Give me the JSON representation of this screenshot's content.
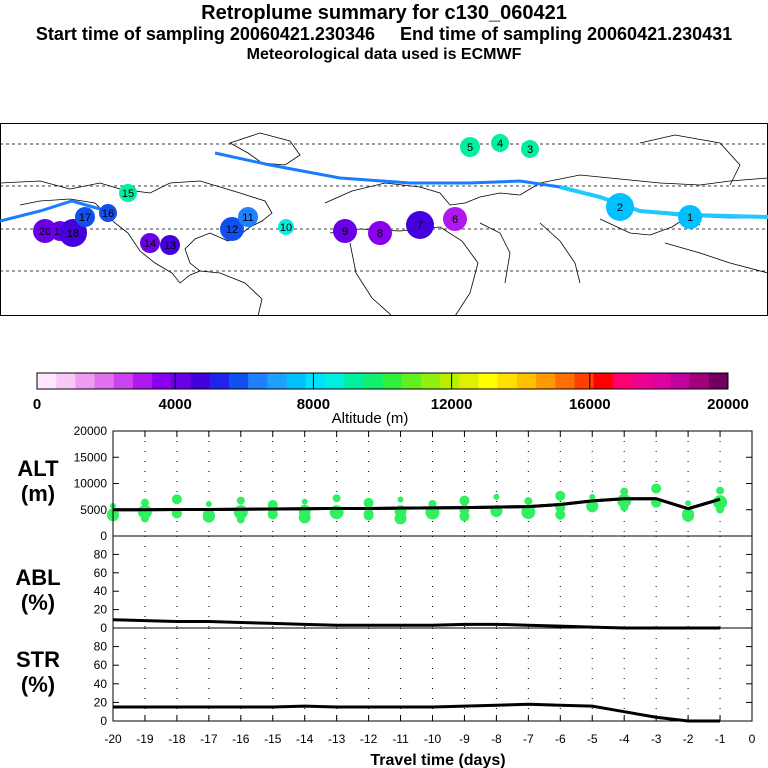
{
  "header": {
    "title": "Retroplume summary for c130_060421",
    "subtitle": "Start time of sampling 20060421.230346     End time of sampling 20060421.230431",
    "met_line": "Meteorological data used is ECMWF"
  },
  "colorbar": {
    "ticks": [
      "0",
      "4000",
      "8000",
      "12000",
      "16000",
      "20000"
    ],
    "label": "Altitude (m)",
    "colors": [
      "#ffe8ff",
      "#f8c8f8",
      "#ee9cf0",
      "#e070ee",
      "#cc44f0",
      "#b018f0",
      "#8a00ee",
      "#6a00e6",
      "#4400dd",
      "#2222ee",
      "#1050f0",
      "#2080ff",
      "#20a0ff",
      "#00c0ff",
      "#00e0ff",
      "#00f0e0",
      "#00f0a0",
      "#10f070",
      "#30f040",
      "#60f020",
      "#90f010",
      "#b8f000",
      "#e0f000",
      "#ffff00",
      "#ffe000",
      "#ffc000",
      "#ff9a00",
      "#ff7000",
      "#ff4000",
      "#ff0000",
      "#ff0070",
      "#f00090",
      "#e000a0",
      "#c000a0",
      "#a0007a",
      "#700060"
    ]
  },
  "map": {
    "labels": [
      "20",
      "19",
      "18",
      "17",
      "16",
      "15",
      "14",
      "13",
      "12",
      "11",
      "10",
      "9",
      "8",
      "7",
      "6",
      "5",
      "4",
      "3",
      "2",
      "1"
    ]
  },
  "chart_data": [
    {
      "type": "line",
      "name": "ALT",
      "ylabel_line1": "ALT",
      "ylabel_line2": "(m)",
      "ylim": [
        0,
        20000
      ],
      "yticks": [
        "0",
        "5000",
        "10000",
        "15000",
        "20000"
      ],
      "x": [
        -20,
        -19,
        -18,
        -17,
        -16,
        -15,
        -14,
        -13,
        -12,
        -11,
        -10,
        -9,
        -8,
        -7,
        -6,
        -5,
        -4,
        -3,
        -2,
        -1
      ],
      "values": [
        5000,
        5000,
        5050,
        5050,
        5100,
        5150,
        5200,
        5250,
        5250,
        5300,
        5350,
        5400,
        5500,
        5600,
        6000,
        6700,
        7100,
        7100,
        5200,
        7000
      ]
    },
    {
      "type": "line",
      "name": "ABL",
      "ylabel_line1": "ABL",
      "ylabel_line2": "(%)",
      "ylim": [
        0,
        100
      ],
      "yticks": [
        "0",
        "20",
        "40",
        "60",
        "80"
      ],
      "x": [
        -20,
        -19,
        -18,
        -17,
        -16,
        -15,
        -14,
        -13,
        -12,
        -11,
        -10,
        -9,
        -8,
        -7,
        -6,
        -5,
        -4,
        -3,
        -2,
        -1
      ],
      "values": [
        9,
        8,
        7,
        7,
        6,
        5,
        4,
        3,
        3,
        3,
        3,
        4,
        4,
        3,
        2,
        1,
        0,
        0,
        0,
        0
      ]
    },
    {
      "type": "line",
      "name": "STR",
      "ylabel_line1": "STR",
      "ylabel_line2": "(%)",
      "ylim": [
        0,
        100
      ],
      "yticks": [
        "0",
        "20",
        "40",
        "60",
        "80"
      ],
      "x": [
        -20,
        -19,
        -18,
        -17,
        -16,
        -15,
        -14,
        -13,
        -12,
        -11,
        -10,
        -9,
        -8,
        -7,
        -6,
        -5,
        -4,
        -3,
        -2,
        -1
      ],
      "values": [
        15,
        15,
        15,
        15,
        15,
        15,
        16,
        15,
        15,
        15,
        15,
        16,
        17,
        18,
        17,
        16,
        10,
        4,
        0,
        0
      ]
    }
  ],
  "xaxis": {
    "label": "Travel time (days)",
    "ticks": [
      "-20",
      "-19",
      "-18",
      "-17",
      "-16",
      "-15",
      "-14",
      "-13",
      "-12",
      "-11",
      "-10",
      "-9",
      "-8",
      "-7",
      "-6",
      "-5",
      "-4",
      "-3",
      "-2",
      "-1",
      "0"
    ]
  }
}
